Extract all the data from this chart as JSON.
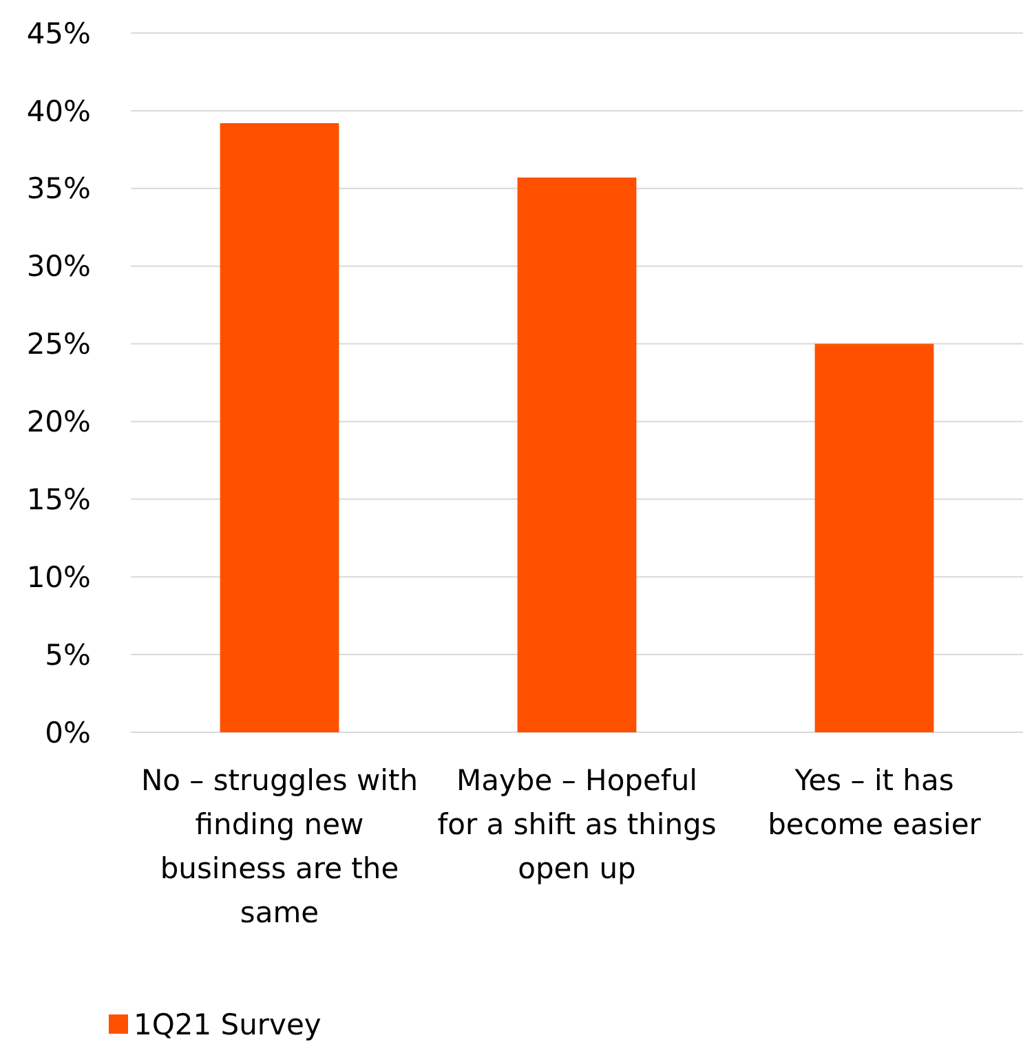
{
  "chart_data": {
    "type": "bar",
    "categories": [
      "No – struggles with finding new business are the same",
      "Maybe – Hopeful for a shift as things open up",
      "Yes – it has become easier"
    ],
    "series": [
      {
        "name": "1Q21 Survey",
        "color": "#ff5000",
        "values": [
          39.2,
          35.7,
          25
        ]
      }
    ],
    "ylim": [
      0,
      45
    ],
    "yticks": [
      {
        "value": 0,
        "label": "0%"
      },
      {
        "value": 5,
        "label": "5%"
      },
      {
        "value": 10,
        "label": "10%"
      },
      {
        "value": 15,
        "label": "15%"
      },
      {
        "value": 20,
        "label": "20%"
      },
      {
        "value": 25,
        "label": "25%"
      },
      {
        "value": 30,
        "label": "30%"
      },
      {
        "value": 35,
        "label": "35%"
      },
      {
        "value": 40,
        "label": "40%"
      },
      {
        "value": 45,
        "label": "45%"
      }
    ],
    "grid": "y",
    "legend": "bottom"
  }
}
